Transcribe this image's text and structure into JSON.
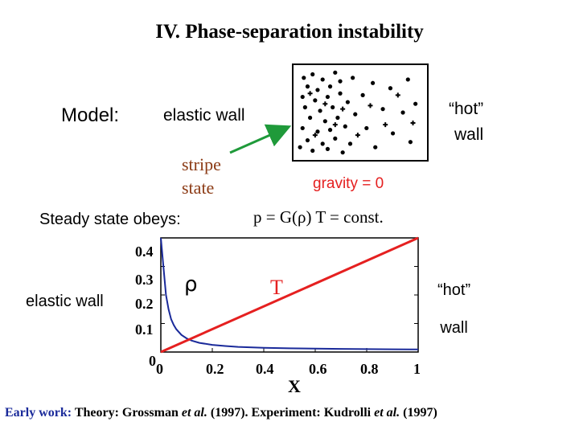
{
  "title": "IV. Phase-separation instability",
  "model_label": "Model:",
  "elastic_wall_label": "elastic wall",
  "hot_wall_line1": "“hot”",
  "hot_wall_line2": "wall",
  "stripe_line1": "stripe",
  "stripe_line2": "state",
  "gravity_label": "gravity = 0",
  "steady_label": "Steady state obeys:",
  "equation": "p = G(ρ) T = const.",
  "plot_left_label": "elastic wall",
  "plot_right_line1": "“hot”",
  "plot_right_line2": "wall",
  "footer": {
    "prefix": "Early work:",
    "theory": " Theory: Grossman ",
    "etal1": "et al.",
    "mid": " (1997). Experiment: Kudrolli ",
    "etal2": "et al.",
    "suffix": " (1997)"
  },
  "colors": {
    "arrow": "#1f9a3a",
    "red_line": "#e52020",
    "blue_curve": "#1a2a9a",
    "brown_text": "#8b3a14"
  },
  "chart_data": {
    "type": "line",
    "xlabel": "X",
    "ylim": [
      0,
      0.4
    ],
    "xlim": [
      0,
      1
    ],
    "x_ticks": [
      "0",
      "0.2",
      "0.4",
      "0.6",
      "0.8",
      "1"
    ],
    "y_ticks": [
      "0.1",
      "0.2",
      "0.3",
      "0.4"
    ],
    "origin_label": "0",
    "series": [
      {
        "name": "ρ",
        "color": "#1a2a9a",
        "x": [
          0.0,
          0.01,
          0.02,
          0.03,
          0.04,
          0.05,
          0.06,
          0.08,
          0.1,
          0.12,
          0.15,
          0.2,
          0.25,
          0.3,
          0.4,
          0.5,
          0.6,
          0.7,
          0.8,
          0.9,
          1.0
        ],
        "y": [
          0.4,
          0.3,
          0.2,
          0.15,
          0.115,
          0.095,
          0.08,
          0.06,
          0.048,
          0.04,
          0.032,
          0.025,
          0.021,
          0.018,
          0.015,
          0.013,
          0.012,
          0.011,
          0.01,
          0.0095,
          0.009
        ]
      },
      {
        "name": "T",
        "color": "#e52020",
        "x": [
          0.0,
          1.0
        ],
        "y": [
          0.0,
          0.4
        ]
      }
    ]
  },
  "particles": {
    "dots": [
      [
        0.05,
        0.1
      ],
      [
        0.12,
        0.06
      ],
      [
        0.2,
        0.12
      ],
      [
        0.08,
        0.2
      ],
      [
        0.16,
        0.24
      ],
      [
        0.26,
        0.2
      ],
      [
        0.04,
        0.32
      ],
      [
        0.14,
        0.36
      ],
      [
        0.24,
        0.32
      ],
      [
        0.34,
        0.28
      ],
      [
        0.06,
        0.44
      ],
      [
        0.18,
        0.48
      ],
      [
        0.28,
        0.44
      ],
      [
        0.1,
        0.56
      ],
      [
        0.22,
        0.6
      ],
      [
        0.32,
        0.56
      ],
      [
        0.04,
        0.68
      ],
      [
        0.16,
        0.72
      ],
      [
        0.26,
        0.7
      ],
      [
        0.08,
        0.82
      ],
      [
        0.2,
        0.86
      ],
      [
        0.3,
        0.8
      ],
      [
        0.12,
        0.94
      ],
      [
        0.24,
        0.92
      ],
      [
        0.34,
        0.14
      ],
      [
        0.4,
        0.38
      ],
      [
        0.38,
        0.66
      ],
      [
        0.44,
        0.1
      ],
      [
        0.46,
        0.52
      ],
      [
        0.42,
        0.86
      ],
      [
        0.52,
        0.3
      ],
      [
        0.55,
        0.68
      ],
      [
        0.6,
        0.16
      ],
      [
        0.62,
        0.9
      ],
      [
        0.68,
        0.46
      ],
      [
        0.74,
        0.22
      ],
      [
        0.76,
        0.74
      ],
      [
        0.84,
        0.5
      ],
      [
        0.88,
        0.12
      ],
      [
        0.9,
        0.84
      ],
      [
        0.94,
        0.4
      ],
      [
        0.02,
        0.9
      ],
      [
        0.3,
        0.04
      ],
      [
        0.36,
        0.96
      ]
    ],
    "crosses": [
      [
        0.1,
        0.28
      ],
      [
        0.22,
        0.4
      ],
      [
        0.3,
        0.64
      ],
      [
        0.14,
        0.76
      ],
      [
        0.36,
        0.46
      ],
      [
        0.48,
        0.76
      ],
      [
        0.58,
        0.42
      ],
      [
        0.7,
        0.64
      ],
      [
        0.8,
        0.3
      ],
      [
        0.92,
        0.62
      ]
    ]
  }
}
